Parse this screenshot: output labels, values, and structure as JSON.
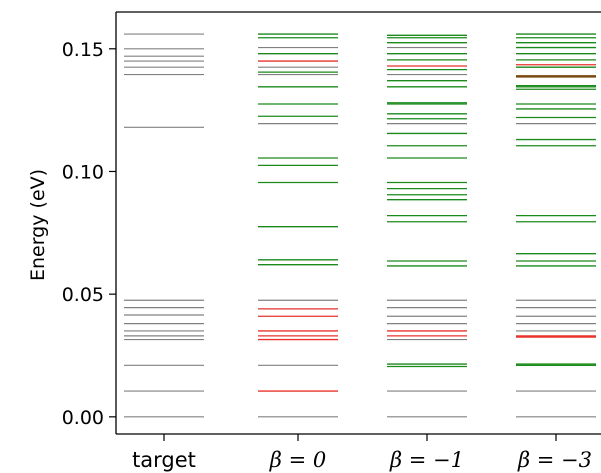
{
  "chart_data": {
    "type": "scatter",
    "description_kind": "energy-level diagram",
    "ylabel": "Energy (eV)",
    "ylim": [
      -0.007,
      0.165
    ],
    "y_ticks": [
      {
        "value": 0.0,
        "label": "0.00"
      },
      {
        "value": 0.05,
        "label": "0.05"
      },
      {
        "value": 0.1,
        "label": "0.10"
      },
      {
        "value": 0.15,
        "label": "0.15"
      }
    ],
    "grid": false,
    "categories": [
      {
        "key": "target",
        "label": "target",
        "italic": false
      },
      {
        "key": "b0",
        "label": "β = 0",
        "italic": true
      },
      {
        "key": "bm1",
        "label": "β = −1",
        "italic": true
      },
      {
        "key": "bm3",
        "label": "β = −3",
        "italic": true
      }
    ],
    "colors": {
      "gray": "#808080",
      "red": "#e8322b",
      "green": "#1a8a1a",
      "brown": "#7a4a12"
    },
    "levels": {
      "target": [
        {
          "y": 0.0,
          "c": "gray"
        },
        {
          "y": 0.0105,
          "c": "gray"
        },
        {
          "y": 0.021,
          "c": "gray"
        },
        {
          "y": 0.0315,
          "c": "gray"
        },
        {
          "y": 0.033,
          "c": "gray"
        },
        {
          "y": 0.035,
          "c": "gray"
        },
        {
          "y": 0.038,
          "c": "gray"
        },
        {
          "y": 0.0415,
          "c": "gray"
        },
        {
          "y": 0.0445,
          "c": "gray"
        },
        {
          "y": 0.0475,
          "c": "gray"
        },
        {
          "y": 0.118,
          "c": "gray"
        },
        {
          "y": 0.1395,
          "c": "gray"
        },
        {
          "y": 0.1425,
          "c": "gray"
        },
        {
          "y": 0.145,
          "c": "gray"
        },
        {
          "y": 0.147,
          "c": "gray"
        },
        {
          "y": 0.15,
          "c": "gray"
        },
        {
          "y": 0.156,
          "c": "gray"
        }
      ],
      "b0": [
        {
          "y": 0.0,
          "c": "gray"
        },
        {
          "y": 0.0105,
          "c": "red"
        },
        {
          "y": 0.021,
          "c": "gray"
        },
        {
          "y": 0.0315,
          "c": "red"
        },
        {
          "y": 0.033,
          "c": "red"
        },
        {
          "y": 0.035,
          "c": "red"
        },
        {
          "y": 0.041,
          "c": "red"
        },
        {
          "y": 0.044,
          "c": "red"
        },
        {
          "y": 0.0475,
          "c": "gray"
        },
        {
          "y": 0.062,
          "c": "green"
        },
        {
          "y": 0.064,
          "c": "green"
        },
        {
          "y": 0.0775,
          "c": "green"
        },
        {
          "y": 0.0955,
          "c": "green"
        },
        {
          "y": 0.1025,
          "c": "green"
        },
        {
          "y": 0.1055,
          "c": "green"
        },
        {
          "y": 0.1195,
          "c": "gray"
        },
        {
          "y": 0.1225,
          "c": "green"
        },
        {
          "y": 0.1275,
          "c": "green"
        },
        {
          "y": 0.1345,
          "c": "green"
        },
        {
          "y": 0.1395,
          "c": "gray"
        },
        {
          "y": 0.1405,
          "c": "green"
        },
        {
          "y": 0.1425,
          "c": "gray"
        },
        {
          "y": 0.145,
          "c": "red"
        },
        {
          "y": 0.148,
          "c": "green"
        },
        {
          "y": 0.1505,
          "c": "gray"
        },
        {
          "y": 0.1545,
          "c": "green"
        },
        {
          "y": 0.156,
          "c": "green"
        }
      ],
      "bm1": [
        {
          "y": 0.0,
          "c": "gray"
        },
        {
          "y": 0.0105,
          "c": "gray"
        },
        {
          "y": 0.0205,
          "c": "green"
        },
        {
          "y": 0.0215,
          "c": "green"
        },
        {
          "y": 0.0315,
          "c": "gray"
        },
        {
          "y": 0.033,
          "c": "red"
        },
        {
          "y": 0.035,
          "c": "red"
        },
        {
          "y": 0.038,
          "c": "gray"
        },
        {
          "y": 0.041,
          "c": "gray"
        },
        {
          "y": 0.0445,
          "c": "gray"
        },
        {
          "y": 0.0475,
          "c": "gray"
        },
        {
          "y": 0.0615,
          "c": "green"
        },
        {
          "y": 0.0635,
          "c": "green"
        },
        {
          "y": 0.0795,
          "c": "green"
        },
        {
          "y": 0.082,
          "c": "green"
        },
        {
          "y": 0.0885,
          "c": "green"
        },
        {
          "y": 0.0905,
          "c": "green"
        },
        {
          "y": 0.093,
          "c": "green"
        },
        {
          "y": 0.0955,
          "c": "green"
        },
        {
          "y": 0.1055,
          "c": "green"
        },
        {
          "y": 0.1105,
          "c": "green"
        },
        {
          "y": 0.1155,
          "c": "green"
        },
        {
          "y": 0.1195,
          "c": "gray"
        },
        {
          "y": 0.1215,
          "c": "green"
        },
        {
          "y": 0.1235,
          "c": "green"
        },
        {
          "y": 0.1275,
          "c": "green"
        },
        {
          "y": 0.128,
          "c": "green"
        },
        {
          "y": 0.1345,
          "c": "green"
        },
        {
          "y": 0.137,
          "c": "green"
        },
        {
          "y": 0.1395,
          "c": "gray"
        },
        {
          "y": 0.1415,
          "c": "green"
        },
        {
          "y": 0.143,
          "c": "red"
        },
        {
          "y": 0.1455,
          "c": "green"
        },
        {
          "y": 0.148,
          "c": "green"
        },
        {
          "y": 0.1505,
          "c": "gray"
        },
        {
          "y": 0.1525,
          "c": "green"
        },
        {
          "y": 0.1545,
          "c": "green"
        },
        {
          "y": 0.1555,
          "c": "green"
        }
      ],
      "bm3": [
        {
          "y": 0.0,
          "c": "gray"
        },
        {
          "y": 0.0105,
          "c": "gray"
        },
        {
          "y": 0.021,
          "c": "green"
        },
        {
          "y": 0.0215,
          "c": "green"
        },
        {
          "y": 0.0325,
          "c": "red"
        },
        {
          "y": 0.033,
          "c": "red"
        },
        {
          "y": 0.035,
          "c": "gray"
        },
        {
          "y": 0.038,
          "c": "gray"
        },
        {
          "y": 0.041,
          "c": "gray"
        },
        {
          "y": 0.0445,
          "c": "gray"
        },
        {
          "y": 0.0475,
          "c": "gray"
        },
        {
          "y": 0.0615,
          "c": "green"
        },
        {
          "y": 0.0635,
          "c": "green"
        },
        {
          "y": 0.0665,
          "c": "green"
        },
        {
          "y": 0.0795,
          "c": "green"
        },
        {
          "y": 0.082,
          "c": "green"
        },
        {
          "y": 0.1105,
          "c": "green"
        },
        {
          "y": 0.113,
          "c": "green"
        },
        {
          "y": 0.1195,
          "c": "gray"
        },
        {
          "y": 0.122,
          "c": "green"
        },
        {
          "y": 0.1255,
          "c": "green"
        },
        {
          "y": 0.1275,
          "c": "green"
        },
        {
          "y": 0.1335,
          "c": "green"
        },
        {
          "y": 0.1345,
          "c": "green"
        },
        {
          "y": 0.135,
          "c": "green"
        },
        {
          "y": 0.1385,
          "c": "brown"
        },
        {
          "y": 0.139,
          "c": "brown"
        },
        {
          "y": 0.1425,
          "c": "green"
        },
        {
          "y": 0.1435,
          "c": "red"
        },
        {
          "y": 0.1455,
          "c": "green"
        },
        {
          "y": 0.148,
          "c": "green"
        },
        {
          "y": 0.1505,
          "c": "green"
        },
        {
          "y": 0.1525,
          "c": "green"
        },
        {
          "y": 0.1545,
          "c": "green"
        },
        {
          "y": 0.156,
          "c": "green"
        }
      ]
    }
  }
}
